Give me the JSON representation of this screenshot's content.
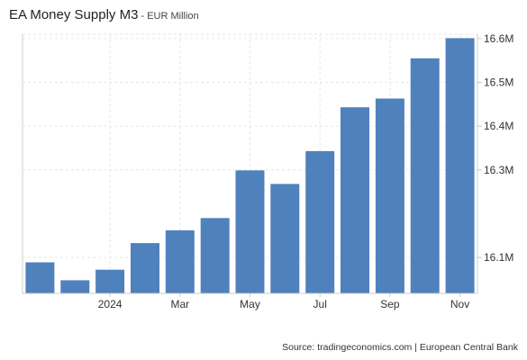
{
  "header": {
    "title": "EA Money Supply M3",
    "separator": " - ",
    "unit": "EUR Million"
  },
  "footer": {
    "source": "Source: tradingeconomics.com | European Central Bank"
  },
  "chart_data": {
    "type": "bar",
    "categories": [
      "2023-11",
      "2023-12",
      "2024-01",
      "2024-02",
      "2024-03",
      "2024-04",
      "2024-05",
      "2024-06",
      "2024-07",
      "2024-08",
      "2024-09",
      "2024-10",
      "2024-11"
    ],
    "values": [
      16089000,
      16048000,
      16072000,
      16133000,
      16162000,
      16190000,
      16299000,
      16268000,
      16343000,
      16443000,
      16463000,
      16555000,
      16601000
    ],
    "x_tick_labels": [
      {
        "at": "2024-01",
        "label": "2024"
      },
      {
        "at": "2024-03",
        "label": "Mar"
      },
      {
        "at": "2024-05",
        "label": "May"
      },
      {
        "at": "2024-07",
        "label": "Jul"
      },
      {
        "at": "2024-09",
        "label": "Sep"
      },
      {
        "at": "2024-11",
        "label": "Nov"
      }
    ],
    "y_ticks": [
      {
        "value": 16100000,
        "label": "16.1M"
      },
      {
        "value": 16300000,
        "label": "16.3M"
      },
      {
        "value": 16400000,
        "label": "16.4M"
      },
      {
        "value": 16500000,
        "label": "16.5M"
      },
      {
        "value": 16600000,
        "label": "16.6M"
      }
    ],
    "ylim": [
      16018000,
      16610000
    ],
    "y_axis_position": "right",
    "grid": true,
    "bar_color": "#4f81bd",
    "grid_color": "#e6e6e6"
  }
}
